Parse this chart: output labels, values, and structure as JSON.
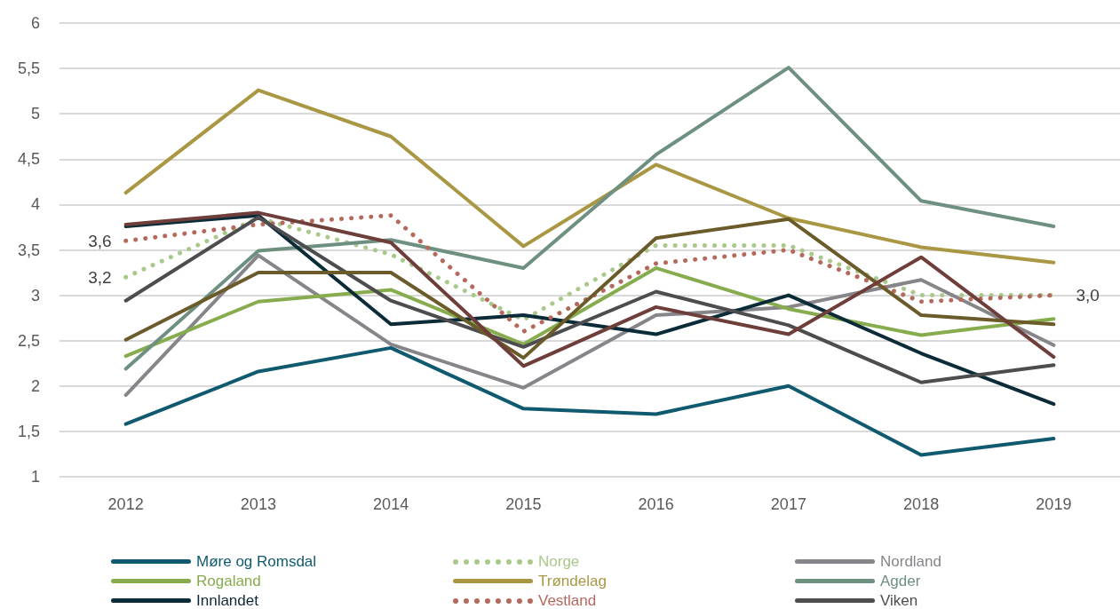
{
  "chart_data": {
    "type": "line",
    "categories": [
      "2012",
      "2013",
      "2014",
      "2015",
      "2016",
      "2017",
      "2018",
      "2019"
    ],
    "series": [
      {
        "name": "Møre og Romsdal",
        "color": "#0f5a6e",
        "values": [
          1.58,
          2.16,
          2.42,
          1.75,
          1.69,
          2.0,
          1.24,
          1.42
        ]
      },
      {
        "name": "Norge",
        "color": "#a9c98a",
        "line_style": "dotted",
        "values": [
          3.2,
          3.85,
          3.45,
          2.73,
          3.55,
          3.55,
          3.0,
          3.0
        ]
      },
      {
        "name": "Nordland",
        "color": "#85858a",
        "values": [
          1.9,
          3.44,
          2.46,
          1.98,
          2.78,
          2.87,
          3.17,
          2.45
        ]
      },
      {
        "name": "Rogaland",
        "color": "#86ac4e",
        "values": [
          2.33,
          2.93,
          3.06,
          2.46,
          3.3,
          2.85,
          2.56,
          2.74
        ]
      },
      {
        "name": "Trøndelag",
        "color": "#a99743",
        "values": [
          4.13,
          5.26,
          4.75,
          3.54,
          4.44,
          3.85,
          3.53,
          3.36
        ]
      },
      {
        "name": "Agder",
        "color": "#6e9080",
        "values": [
          2.19,
          3.49,
          3.61,
          3.3,
          4.55,
          5.51,
          4.04,
          3.76
        ]
      },
      {
        "name": "Innlandet",
        "color": "#0b2b38",
        "values": [
          3.76,
          3.88,
          2.68,
          2.78,
          2.57,
          3.0,
          2.36,
          1.8
        ]
      },
      {
        "name": "Vestland",
        "color": "#b5695c",
        "line_style": "dotted",
        "values": [
          3.6,
          3.78,
          3.88,
          2.6,
          3.35,
          3.5,
          2.93,
          3.0
        ]
      },
      {
        "name": "Viken",
        "color": "#4d4d4f",
        "values": [
          2.94,
          3.86,
          2.94,
          2.43,
          3.04,
          2.67,
          2.04,
          2.23
        ]
      },
      {
        "color": "#6b5a2a",
        "values": [
          2.51,
          3.25,
          3.25,
          2.31,
          3.63,
          3.84,
          2.78,
          2.68
        ]
      },
      {
        "color": "#6e3f3a",
        "values": [
          3.78,
          3.91,
          3.58,
          2.22,
          2.87,
          2.57,
          3.42,
          2.32
        ]
      }
    ],
    "ylim": [
      1,
      6
    ],
    "yticks": [
      1,
      {
        "value": 1.5,
        "label": "1,5"
      },
      2,
      {
        "value": 2.5,
        "label": "2,5"
      },
      3,
      {
        "value": 3.5,
        "label": "3,5"
      },
      4,
      {
        "value": 4.5,
        "label": "4,5"
      },
      5,
      {
        "value": 5.5,
        "label": "5,5"
      },
      6
    ],
    "grid": "y",
    "legend": "bottom",
    "marker": "none",
    "annotations": [
      {
        "text": "3,6",
        "x": "2012",
        "y": 3.6
      },
      {
        "text": "3,2",
        "x": "2012",
        "y": 3.2
      },
      {
        "text": "3,0",
        "x": "2019",
        "y": 3.0
      }
    ]
  }
}
